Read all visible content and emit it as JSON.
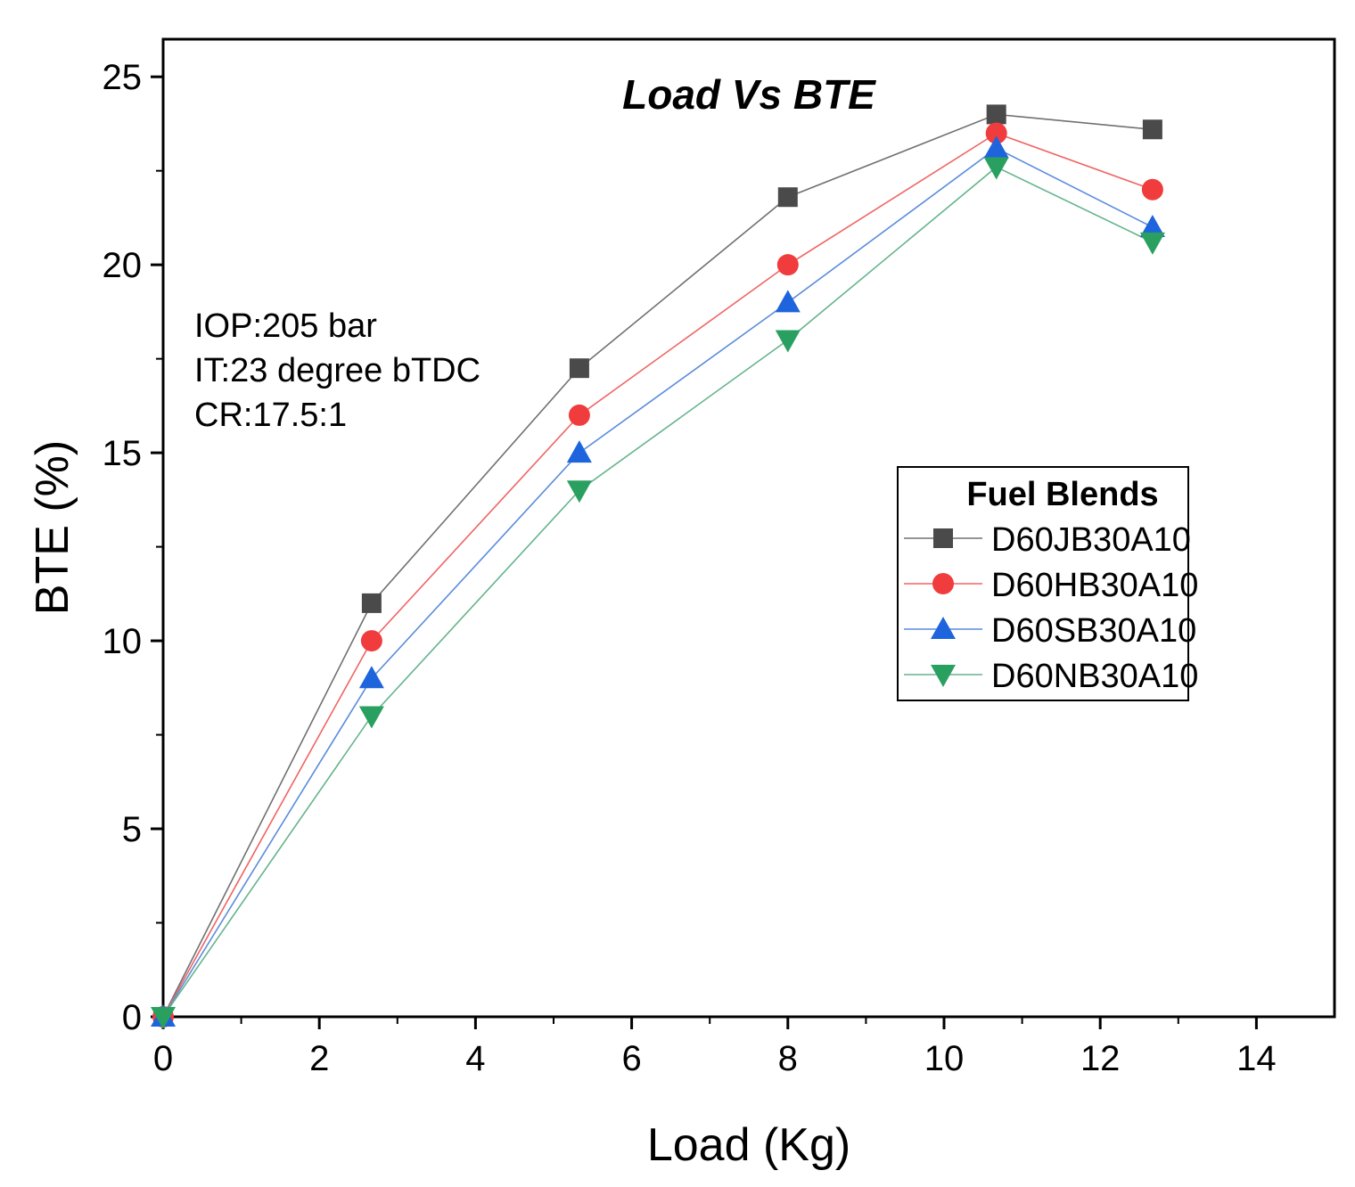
{
  "chart_data": {
    "type": "line",
    "title": "Load Vs BTE",
    "xlabel": "Load (Kg)",
    "ylabel": "BTE (%)",
    "xlim": [
      0,
      15
    ],
    "ylim": [
      0,
      26
    ],
    "xticks": [
      0,
      2,
      4,
      6,
      8,
      10,
      12,
      14
    ],
    "yticks": [
      0,
      5,
      10,
      15,
      20,
      25
    ],
    "x": [
      0,
      2.67,
      5.33,
      8,
      10.67,
      12.67
    ],
    "series": [
      {
        "name": "D60JB30A10",
        "marker": "square",
        "color": "#4a4a4a",
        "line_color": "#707070",
        "values": [
          0,
          11,
          17.25,
          21.8,
          24,
          23.6
        ]
      },
      {
        "name": "D60HB30A10",
        "marker": "circle",
        "color": "#f03c3c",
        "line_color": "#f06464",
        "values": [
          0,
          10,
          16,
          20,
          23.5,
          22
        ]
      },
      {
        "name": "D60SB30A10",
        "marker": "triangle-up",
        "color": "#1e64dc",
        "line_color": "#5a8cdc",
        "values": [
          0,
          9,
          15,
          19,
          23.1,
          21
        ]
      },
      {
        "name": "D60NB30A10",
        "marker": "triangle-down",
        "color": "#2aa060",
        "line_color": "#64b48c",
        "values": [
          0,
          8,
          14,
          18,
          22.6,
          20.6
        ]
      }
    ],
    "annotations": [
      "IOP:205 bar",
      "IT:23 degree bTDC",
      "CR:17.5:1"
    ],
    "legend": {
      "title": "Fuel Blends",
      "position": "center-right"
    },
    "grid": false
  }
}
